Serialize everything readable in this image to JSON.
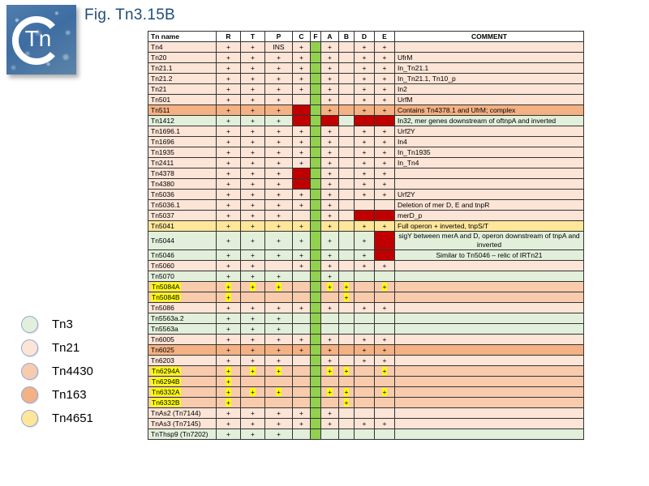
{
  "title": "Fig. Tn3.15B",
  "logo": {
    "monogram": "Tn"
  },
  "colors": {
    "title_text": "#1F4E79",
    "f_column": "#92D050",
    "red_cell": "#C00000",
    "highlight": "#FFFF00",
    "grid": "#333333",
    "legend_ring": "#8FAADC",
    "families": {
      "tn3": "#E2EFDA",
      "tn21": "#FCE4D6",
      "tn4430": "#F8CBAD",
      "tn163": "#F4B183",
      "tn4651": "#FFE699"
    }
  },
  "legend": {
    "items": [
      {
        "label": "Tn3",
        "family": "tn3"
      },
      {
        "label": "Tn21",
        "family": "tn21"
      },
      {
        "label": "Tn4430",
        "family": "tn4430"
      },
      {
        "label": "Tn163",
        "family": "tn163"
      },
      {
        "label": "Tn4651",
        "family": "tn4651"
      }
    ]
  },
  "table": {
    "columns": [
      "Tn name",
      "R",
      "T",
      "P",
      "C",
      "F",
      "A",
      "B",
      "D",
      "E",
      "COMMENT"
    ],
    "cell_order": [
      "R",
      "T",
      "P",
      "C",
      "A",
      "B",
      "D",
      "E"
    ],
    "rows": [
      {
        "name": "Tn4",
        "family": "tn21",
        "cells": [
          "+",
          "+",
          "INS",
          "+",
          "+",
          "",
          "+",
          "+"
        ],
        "comment": ""
      },
      {
        "name": "Tn20",
        "family": "tn21",
        "cells": [
          "+",
          "+",
          "+",
          "+",
          "+",
          "",
          "+",
          "+"
        ],
        "comment": "UfrM"
      },
      {
        "name": "Tn21.1",
        "family": "tn21",
        "cells": [
          "+",
          "+",
          "+",
          "+",
          "+",
          "",
          "+",
          "+"
        ],
        "comment": "In_Tn21.1"
      },
      {
        "name": "Tn21.2",
        "family": "tn21",
        "cells": [
          "+",
          "+",
          "+",
          "+",
          "+",
          "",
          "+",
          "+"
        ],
        "comment": "In_Tn21.1, Tn10_p"
      },
      {
        "name": "Tn21",
        "family": "tn21",
        "cells": [
          "+",
          "+",
          "+",
          "+",
          "+",
          "",
          "+",
          "+"
        ],
        "comment": "In2"
      },
      {
        "name": "Tn501",
        "family": "tn21",
        "cells": [
          "+",
          "+",
          "+",
          "",
          "+",
          "",
          "+",
          "+"
        ],
        "comment": "UrfM"
      },
      {
        "name": "Tn511",
        "family": "tn163",
        "cells": [
          "+",
          "+",
          "+",
          "RED",
          "+",
          "",
          "+",
          "+"
        ],
        "comment": "Contains Tn4378.1 and UfrM; complex"
      },
      {
        "name": "Tn1412",
        "family": "tn3",
        "cells": [
          "+",
          "+",
          "+",
          "RED",
          "RED",
          "",
          "RED",
          "RED"
        ],
        "comment": "In32, mer genes downstream of oftnpA and inverted"
      },
      {
        "name": "Tn1696.1",
        "family": "tn21",
        "cells": [
          "+",
          "+",
          "+",
          "+",
          "+",
          "",
          "+",
          "+"
        ],
        "comment": "Urf2Y"
      },
      {
        "name": "Tn1696",
        "family": "tn21",
        "cells": [
          "+",
          "+",
          "+",
          "+",
          "+",
          "",
          "+",
          "+"
        ],
        "comment": "In4"
      },
      {
        "name": "Tn1935",
        "family": "tn21",
        "cells": [
          "+",
          "+",
          "+",
          "+",
          "+",
          "",
          "+",
          "+"
        ],
        "comment": "In_Tn1935"
      },
      {
        "name": "Tn2411",
        "family": "tn21",
        "cells": [
          "+",
          "+",
          "+",
          "+",
          "+",
          "",
          "+",
          "+"
        ],
        "comment": "In_Tn4"
      },
      {
        "name": "Tn4378",
        "family": "tn21",
        "cells": [
          "+",
          "+",
          "+",
          "RED",
          "+",
          "",
          "+",
          "+"
        ],
        "comment": ""
      },
      {
        "name": "Tn4380",
        "family": "tn21",
        "cells": [
          "+",
          "+",
          "+",
          "RED",
          "+",
          "",
          "+",
          "+"
        ],
        "comment": ""
      },
      {
        "name": "Tn5036",
        "family": "tn21",
        "cells": [
          "+",
          "+",
          "+",
          "+",
          "+",
          "",
          "+",
          "+"
        ],
        "comment": "Urf2Y"
      },
      {
        "name": "Tn5036.1",
        "family": "tn21",
        "cells": [
          "+",
          "+",
          "+",
          "+",
          "+",
          "",
          "",
          ""
        ],
        "comment": "Deletion of mer D, E and tnpR"
      },
      {
        "name": "Tn5037",
        "family": "tn21",
        "cells": [
          "+",
          "+",
          "+",
          "",
          "+",
          "",
          "RED",
          "RED"
        ],
        "comment": "merD_p"
      },
      {
        "name": "Tn5041",
        "family": "tn4651",
        "cells": [
          "+",
          "+",
          "+",
          "+",
          "+",
          "",
          "+",
          "+"
        ],
        "comment": "Full operon + inverted,  tnpS/T"
      },
      {
        "name": "Tn5044",
        "family": "tn3",
        "cells": [
          "+",
          "+",
          "+",
          "+",
          "+",
          "",
          "+",
          "RED"
        ],
        "comment": "sigY between merA and D, operon downstream of tnpA and inverted",
        "comment_align": "center"
      },
      {
        "name": "Tn5046",
        "family": "tn3",
        "cells": [
          "+",
          "+",
          "+",
          "+",
          "+",
          "",
          "+",
          "RED"
        ],
        "comment": "Similar to Tn5046 – relic of IRTn21",
        "comment_align": "center"
      },
      {
        "name": "Tn5060",
        "family": "tn21",
        "cells": [
          "+",
          "+",
          "",
          "+",
          "+",
          "",
          "+",
          "+"
        ],
        "comment": ""
      },
      {
        "name": "Tn5070",
        "family": "tn3",
        "cells": [
          "+",
          "+",
          "+",
          "",
          "+",
          "",
          "",
          ""
        ],
        "comment": ""
      },
      {
        "name": "Tn5084A",
        "family": "tn4430",
        "cells": [
          "+Y",
          "+Y",
          "+Y",
          "",
          "+Y",
          "+Y",
          "",
          "+Y"
        ],
        "comment": "",
        "name_hl": true
      },
      {
        "name": "Tn5084B",
        "family": "tn4430",
        "cells": [
          "+Y",
          "",
          "",
          "",
          "",
          "+Y",
          "",
          ""
        ],
        "comment": "",
        "name_hl": true
      },
      {
        "name": "Tn5086",
        "family": "tn21",
        "cells": [
          "+",
          "+",
          "+",
          "+",
          "+",
          "",
          "+",
          "+"
        ],
        "comment": ""
      },
      {
        "name": "Tn5563a.2",
        "family": "tn3",
        "cells": [
          "+",
          "+",
          "+",
          "",
          "",
          "",
          "",
          ""
        ],
        "comment": ""
      },
      {
        "name": "Tn5563a",
        "family": "tn3",
        "cells": [
          "+",
          "+",
          "+",
          "",
          "",
          "",
          "",
          ""
        ],
        "comment": ""
      },
      {
        "name": "Tn6005",
        "family": "tn21",
        "cells": [
          "+",
          "+",
          "+",
          "+",
          "+",
          "",
          "+",
          "+"
        ],
        "comment": ""
      },
      {
        "name": "Tn6025",
        "family": "tn163",
        "cells": [
          "+",
          "+",
          "+",
          "+",
          "+",
          "",
          "+",
          "+"
        ],
        "comment": ""
      },
      {
        "name": "Tn6203",
        "family": "tn21",
        "cells": [
          "+",
          "+",
          "+",
          "",
          "+",
          "",
          "+",
          "+"
        ],
        "comment": ""
      },
      {
        "name": "Tn6294A",
        "family": "tn4430",
        "cells": [
          "+Y",
          "+Y",
          "+Y",
          "",
          "+Y",
          "+Y",
          "",
          "+Y"
        ],
        "comment": "",
        "name_hl": true
      },
      {
        "name": "Tn6294B",
        "family": "tn4430",
        "cells": [
          "+Y",
          "",
          "",
          "",
          "",
          "",
          "",
          ""
        ],
        "comment": "",
        "name_hl": true
      },
      {
        "name": "Tn6332A",
        "family": "tn4430",
        "cells": [
          "+Y",
          "+Y",
          "+Y",
          "",
          "+Y",
          "+Y",
          "",
          "+Y"
        ],
        "comment": "",
        "name_hl": true
      },
      {
        "name": "Tn6332B",
        "family": "tn4430",
        "cells": [
          "+Y",
          "",
          "",
          "",
          "",
          "+Y",
          "",
          ""
        ],
        "comment": "",
        "name_hl": true
      },
      {
        "name": "TnAs2 (Tn7144)",
        "family": "tn21",
        "cells": [
          "+",
          "+",
          "+",
          "+",
          "+",
          "",
          "",
          ""
        ],
        "comment": ""
      },
      {
        "name": "TnAs3 (Tn7145)",
        "family": "tn21",
        "cells": [
          "+",
          "+",
          "+",
          "+",
          "+",
          "",
          "+",
          "+"
        ],
        "comment": ""
      },
      {
        "name": "TnThsp9 (Tn7202)",
        "family": "tn3",
        "cells": [
          "+",
          "+",
          "+",
          "",
          "",
          "",
          "",
          ""
        ],
        "comment": ""
      }
    ]
  }
}
